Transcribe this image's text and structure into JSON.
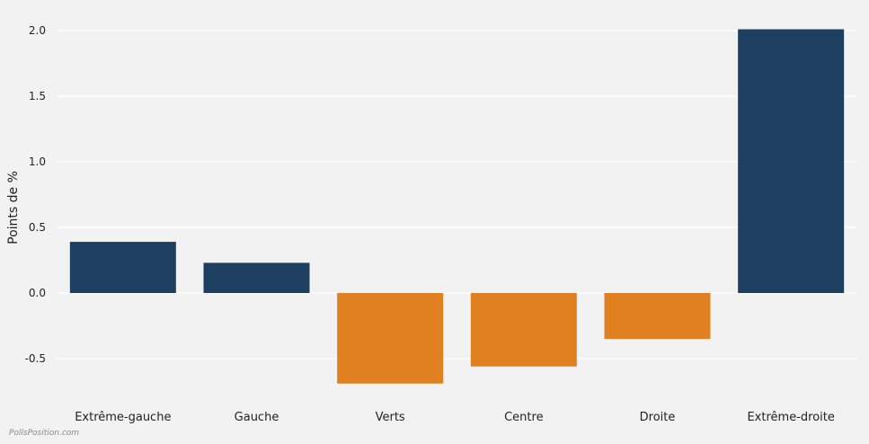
{
  "chart_data": {
    "type": "bar",
    "categories": [
      "Extrême-gauche",
      "Gauche",
      "Verts",
      "Centre",
      "Droite",
      "Extrême-droite"
    ],
    "values": [
      0.39,
      0.23,
      -0.69,
      -0.56,
      -0.35,
      2.01
    ],
    "ylabel": "Points de %",
    "ylim": [
      -0.72,
      2.2
    ],
    "yticks": [
      -0.5,
      0.0,
      0.5,
      1.0,
      1.5,
      2.0
    ],
    "ytick_labels": [
      "-0.5",
      "0.0",
      "0.5",
      "1.0",
      "1.5",
      "2.0"
    ],
    "grid": true,
    "colors": {
      "positive": "#1d4061",
      "negative": "#e08020",
      "grid": "#ffffff",
      "background": "#f2f2f2"
    }
  },
  "watermark": "PollsPosition.com"
}
